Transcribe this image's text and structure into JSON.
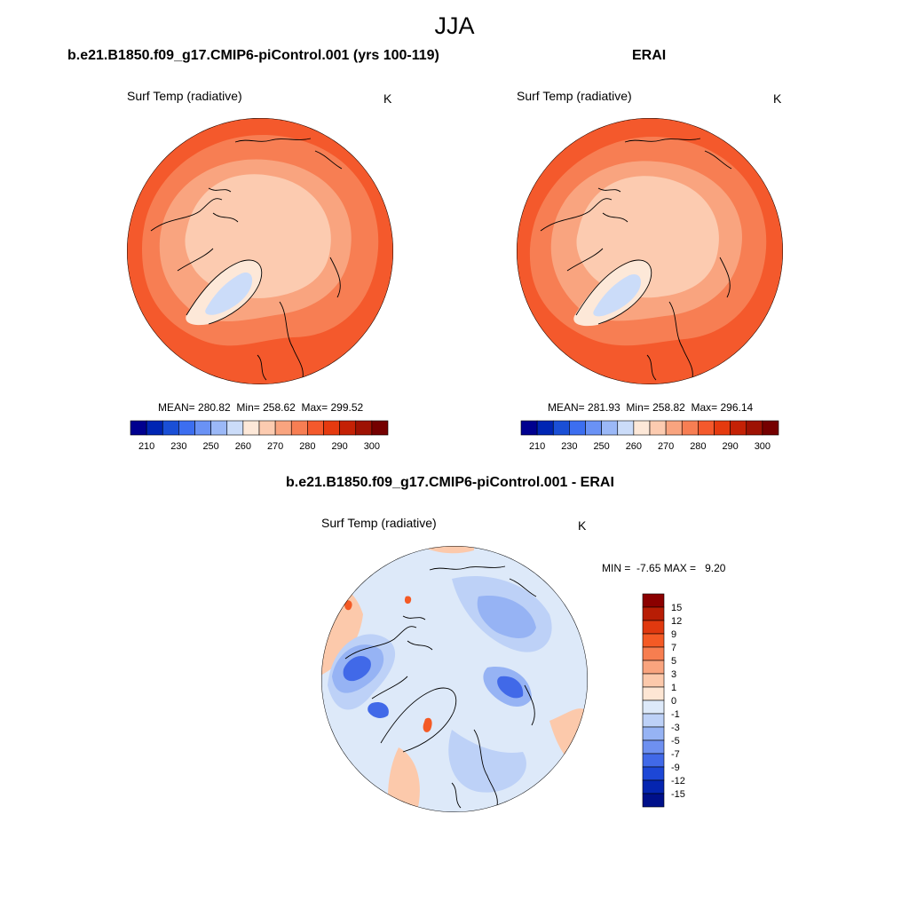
{
  "figure": {
    "season": "JJA"
  },
  "panels": [
    {
      "title": "b.e21.B1850.f09_g17.CMIP6-piControl.001 (yrs 100-119)",
      "variable": "Surf Temp (radiative)",
      "units": "K",
      "stats": {
        "mean_label": "MEAN=",
        "mean": "280.82",
        "min_label": "Min=",
        "min": "258.62",
        "max_label": "Max=",
        "max": "299.52"
      },
      "colorbar": {
        "labels": [
          "210",
          "230",
          "250",
          "260",
          "270",
          "280",
          "290",
          "300"
        ],
        "colors": [
          "#00008f",
          "#0025b3",
          "#1a4fd6",
          "#3c6ef0",
          "#6a92f5",
          "#9bb8f7",
          "#cbdcf9",
          "#fde8d8",
          "#fccbb0",
          "#f9a47f",
          "#f77e53",
          "#f4592c",
          "#e53a0f",
          "#c42105",
          "#9e1203",
          "#750000"
        ]
      }
    },
    {
      "title": "ERAI",
      "variable": "Surf Temp (radiative)",
      "units": "K",
      "stats": {
        "mean_label": "MEAN=",
        "mean": "281.93",
        "min_label": "Min=",
        "min": "258.82",
        "max_label": "Max=",
        "max": "296.14"
      },
      "colorbar": {
        "labels": [
          "210",
          "230",
          "250",
          "260",
          "270",
          "280",
          "290",
          "300"
        ],
        "colors": [
          "#00008f",
          "#0025b3",
          "#1a4fd6",
          "#3c6ef0",
          "#6a92f5",
          "#9bb8f7",
          "#cbdcf9",
          "#fde8d8",
          "#fccbb0",
          "#f9a47f",
          "#f77e53",
          "#f4592c",
          "#e53a0f",
          "#c42105",
          "#9e1203",
          "#750000"
        ]
      }
    },
    {
      "title": "b.e21.B1850.f09_g17.CMIP6-piControl.001 - ERAI",
      "variable": "Surf Temp (radiative)",
      "units": "K",
      "stats": {
        "min_label": "MIN =",
        "min": "-7.65",
        "max_label": "MAX =",
        "max": "9.20"
      },
      "colorbar": {
        "labels": [
          "15",
          "12",
          "9",
          "7",
          "5",
          "3",
          "1",
          "0",
          "-1",
          "-3",
          "-5",
          "-7",
          "-9",
          "-12",
          "-15"
        ],
        "colors": [
          "#8b0000",
          "#b81d05",
          "#e0390f",
          "#f45a25",
          "#f77e50",
          "#f9a47e",
          "#fcc9ab",
          "#fde6d4",
          "#dde9f9",
          "#bdd1f7",
          "#96b3f4",
          "#6e90f0",
          "#4169e8",
          "#1d47d6",
          "#0525b0",
          "#00108a"
        ]
      }
    }
  ],
  "map_colors": {
    "warm_outer": "#f4592c",
    "warm_mid": "#f77e53",
    "warm_inner": "#f9a47f",
    "arctic": "#fccbb0",
    "greenland_edge": "#fde8d8",
    "greenland_core": "#cbdcf9",
    "diff_base": "#dde9f9",
    "diff_cool": "#bdd1f7",
    "diff_cooler": "#96b3f4",
    "diff_cold": "#4169e8",
    "diff_warm": "#fcc9ab",
    "diff_hot": "#f45a25"
  }
}
